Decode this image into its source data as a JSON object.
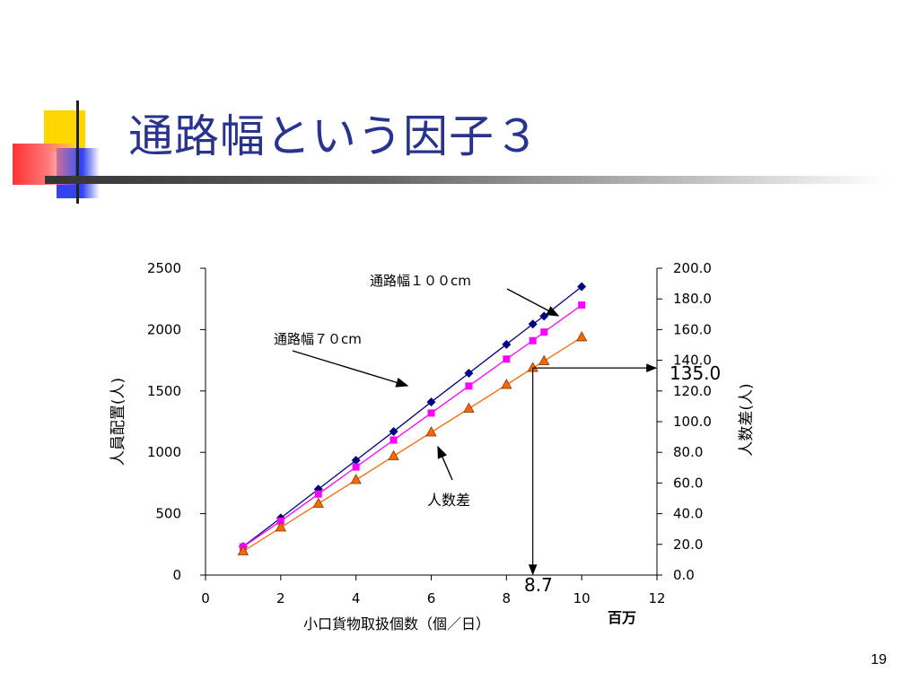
{
  "slide": {
    "title": "通路幅という因子３",
    "page_number": "19"
  },
  "colors": {
    "title": "#27338f",
    "series_100cm": "#000080",
    "series_70cm": "#ff00ff",
    "series_diff": "#ff6600",
    "deco_yellow": "#ffd700",
    "deco_red": "#ff4444",
    "deco_blue": "#3344ee"
  },
  "chart_data": {
    "type": "line",
    "xlabel": "小口貨物取扱個数（個／日）",
    "x_unit": "百万",
    "ylabel_left": "人員配置(人)",
    "ylabel_right": "人数差(人)",
    "xlim": [
      0,
      12
    ],
    "ylim_left": [
      0,
      2500
    ],
    "ylim_right": [
      0.0,
      200.0
    ],
    "x_ticks": [
      "0",
      "2",
      "4",
      "6",
      "8",
      "10",
      "12"
    ],
    "y_left_ticks": [
      "0",
      "500",
      "1000",
      "1500",
      "2000",
      "2500"
    ],
    "y_right_ticks": [
      "0.0",
      "20.0",
      "40.0",
      "60.0",
      "80.0",
      "100.0",
      "120.0",
      "140.0",
      "160.0",
      "180.0",
      "200.0"
    ],
    "grid": false,
    "x": [
      1,
      2,
      3,
      4,
      5,
      6,
      7,
      8,
      9,
      10
    ],
    "series": [
      {
        "name": "通路幅１００cm",
        "axis": "left",
        "marker": "diamond",
        "x": [
          1,
          2,
          3,
          4,
          5,
          6,
          7,
          8,
          8.7,
          9,
          10
        ],
        "values": [
          232,
          465,
          700,
          935,
          1170,
          1410,
          1645,
          1880,
          2045,
          2110,
          2350
        ]
      },
      {
        "name": "通路幅７０cm",
        "axis": "left",
        "marker": "square",
        "x": [
          1,
          2,
          3,
          4,
          5,
          6,
          7,
          8,
          8.7,
          9,
          10
        ],
        "values": [
          230,
          440,
          660,
          880,
          1100,
          1320,
          1540,
          1760,
          1910,
          1980,
          2200
        ]
      },
      {
        "name": "人数差",
        "axis": "right",
        "marker": "triangle",
        "x": [
          1,
          2,
          3,
          4,
          5,
          6,
          7,
          8,
          8.7,
          9,
          10
        ],
        "values": [
          15.5,
          31,
          46.5,
          62,
          77.5,
          93,
          108.5,
          124,
          135,
          139.5,
          155
        ]
      }
    ],
    "annotations": [
      {
        "id": "x-readout",
        "text": "8.7",
        "x": 8.7
      },
      {
        "id": "y-readout",
        "text": "135.0",
        "y_right": 135.0
      }
    ]
  }
}
